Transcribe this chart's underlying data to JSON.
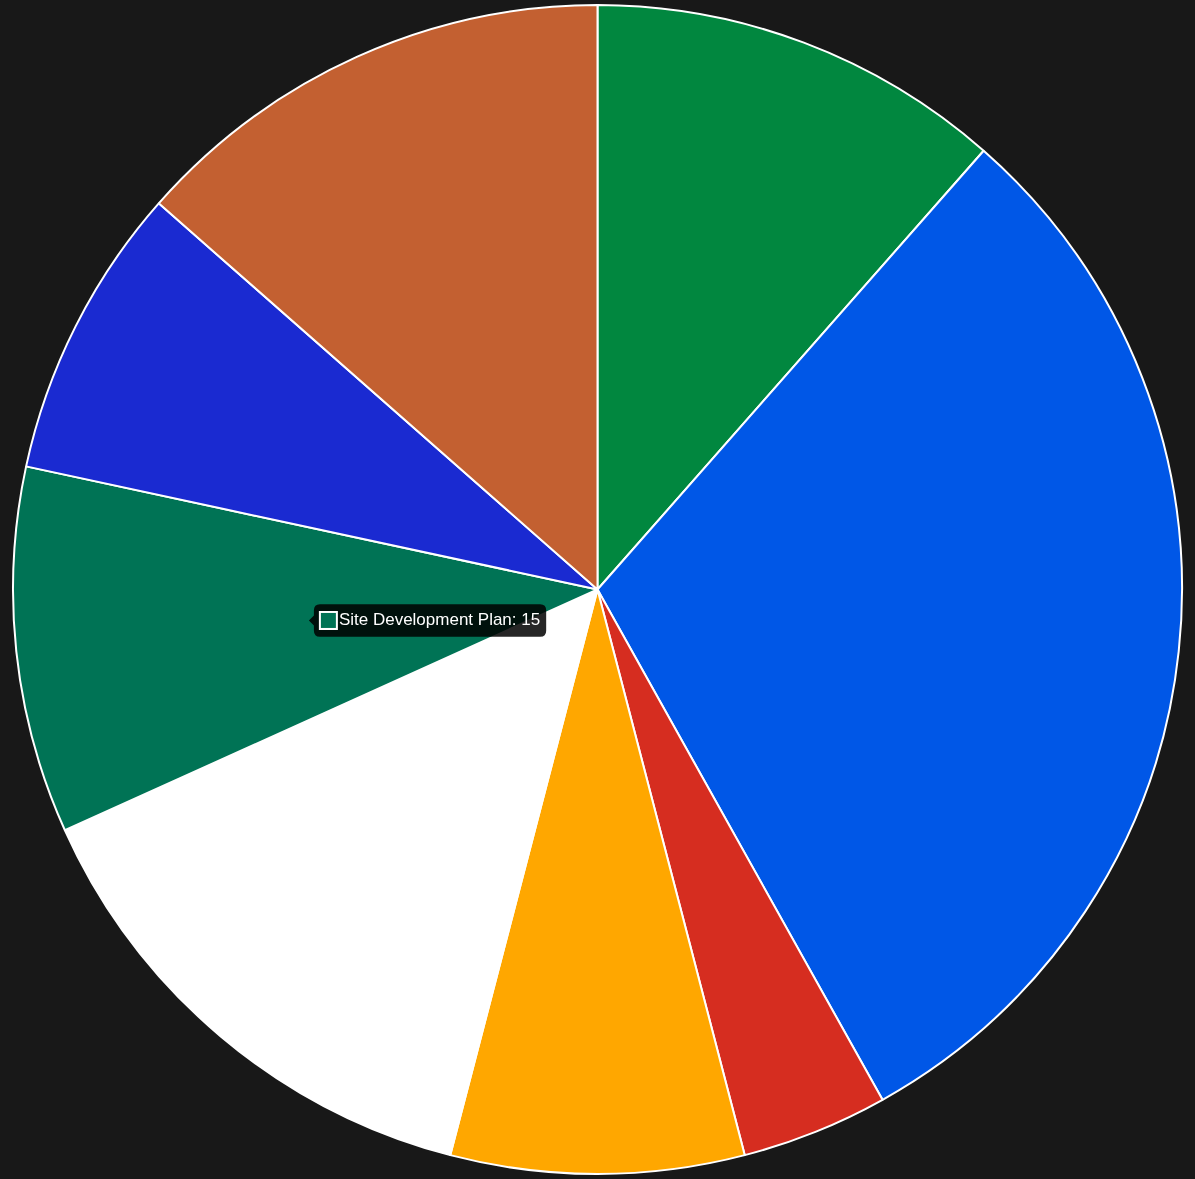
{
  "chart_data": {
    "type": "pie",
    "categories": [
      null,
      null,
      null,
      null,
      null,
      "Site Development Plan",
      null,
      null
    ],
    "values": [
      17,
      45,
      6,
      12,
      21,
      15,
      12,
      20
    ],
    "colors": [
      "#01873f",
      "#0057e7",
      "#d62d20",
      "#ffa700",
      "#ffffff",
      "#007355",
      "#1a2ad1",
      "#c36031"
    ],
    "value_labels": [
      null,
      null,
      null,
      null,
      null,
      "15",
      null,
      null
    ],
    "legend": "left"
  }
}
